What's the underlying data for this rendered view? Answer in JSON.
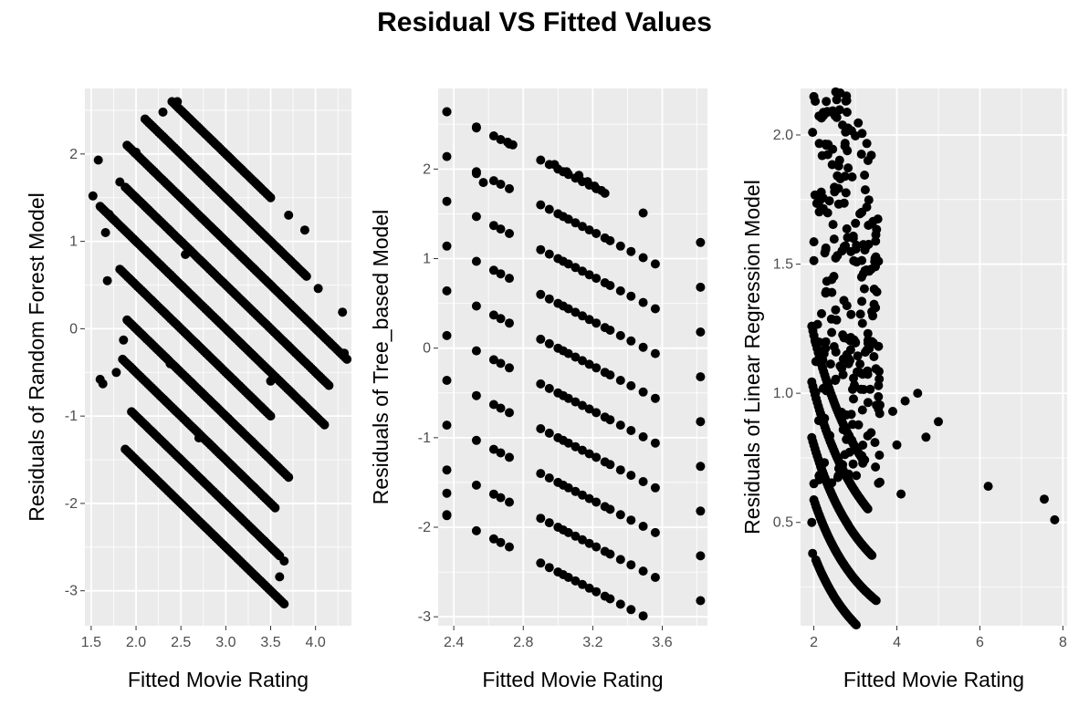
{
  "figure": {
    "title": "Residual VS Fitted Values"
  },
  "colors": {
    "panel_bg": "#ebebeb",
    "grid": "#ffffff",
    "point": "#000000",
    "tick_text": "#4d4d4d"
  },
  "chart_data": [
    {
      "type": "scatter",
      "xlabel": "Fitted Movie Rating",
      "ylabel": "Residuals of Random Forest Model",
      "xlim": [
        1.43,
        4.4
      ],
      "ylim": [
        -3.4,
        2.75
      ],
      "xticks": [
        1.5,
        2.0,
        2.5,
        3.0,
        3.5,
        4.0
      ],
      "xtick_labels": [
        "1.5",
        "2.0",
        "2.5",
        "3.0",
        "3.5",
        "4.0"
      ],
      "yticks": [
        -3,
        -2,
        -1,
        0,
        1,
        2
      ],
      "ytick_labels": [
        "-3",
        "-2",
        "-1",
        "0",
        "1",
        "2"
      ],
      "grid": true,
      "pattern": "diagonal bands: residual = rating - fitted, for true ratings 0.5-5 in 0.5 steps",
      "bands": [
        {
          "c": 0.5,
          "x": [
            1.88,
            3.65
          ]
        },
        {
          "c": 1.0,
          "x": [
            1.95,
            3.6
          ]
        },
        {
          "c": 1.5,
          "x": [
            1.85,
            3.55
          ]
        },
        {
          "c": 2.0,
          "x": [
            1.9,
            3.7
          ]
        },
        {
          "c": 2.5,
          "x": [
            1.82,
            3.5
          ]
        },
        {
          "c": 3.0,
          "x": [
            1.6,
            4.1
          ]
        },
        {
          "c": 3.5,
          "x": [
            1.88,
            4.15
          ]
        },
        {
          "c": 4.0,
          "x": [
            1.9,
            4.35
          ]
        },
        {
          "c": 4.5,
          "x": [
            2.1,
            3.9
          ]
        },
        {
          "c": 5.0,
          "x": [
            2.4,
            3.5
          ]
        }
      ],
      "points": [
        {
          "x": 1.52,
          "y": 1.52
        },
        {
          "x": 1.58,
          "y": 1.93
        },
        {
          "x": 1.6,
          "y": -0.58
        },
        {
          "x": 1.63,
          "y": -0.63
        },
        {
          "x": 1.66,
          "y": 1.1
        },
        {
          "x": 1.68,
          "y": 0.55
        },
        {
          "x": 1.7,
          "y": 1.31
        },
        {
          "x": 1.75,
          "y": 1.25
        },
        {
          "x": 1.78,
          "y": -0.5
        },
        {
          "x": 1.82,
          "y": 1.68
        },
        {
          "x": 1.86,
          "y": -0.13
        },
        {
          "x": 2.0,
          "y": 2.02
        },
        {
          "x": 2.2,
          "y": 1.8
        },
        {
          "x": 2.3,
          "y": 2.48
        },
        {
          "x": 2.46,
          "y": 2.6
        },
        {
          "x": 3.7,
          "y": 1.3
        },
        {
          "x": 3.78,
          "y": 0.72
        },
        {
          "x": 3.88,
          "y": 1.13
        },
        {
          "x": 4.03,
          "y": 0.46
        },
        {
          "x": 4.3,
          "y": 0.19
        },
        {
          "x": 4.32,
          "y": -0.28
        },
        {
          "x": 3.6,
          "y": -2.84
        },
        {
          "x": 3.65,
          "y": -2.66
        },
        {
          "x": 2.38,
          "y": -0.4
        },
        {
          "x": 2.55,
          "y": 0.85
        },
        {
          "x": 2.7,
          "y": -1.25
        },
        {
          "x": 3.5,
          "y": -0.6
        }
      ]
    },
    {
      "type": "scatter",
      "xlabel": "Fitted Movie Rating",
      "ylabel": "Residuals of Tree_based Model",
      "xlim": [
        2.31,
        3.86
      ],
      "ylim": [
        -3.1,
        2.9
      ],
      "xticks": [
        2.4,
        2.8,
        3.2,
        3.6
      ],
      "xtick_labels": [
        "2.4",
        "2.8",
        "3.2",
        "3.6"
      ],
      "yticks": [
        -3,
        -2,
        -1,
        0,
        1,
        2
      ],
      "ytick_labels": [
        "-3",
        "-2",
        "-1",
        "0",
        "1",
        "2"
      ],
      "grid": true,
      "pattern": "discrete fitted values; at each, residuals = rating - fitted for ratings 0.5-5 in 0.5 steps",
      "columns": [
        {
          "x": 2.36,
          "steps": [
            1,
            2,
            3,
            4,
            5,
            6,
            7,
            8,
            9,
            10
          ],
          "extra": [
            2.64,
            -1.87,
            -1.62
          ]
        },
        {
          "x": 2.53,
          "steps": [
            2,
            3,
            4,
            5,
            6,
            7,
            8,
            9,
            10
          ],
          "extra": [
            2.46,
            1.95,
            -2.04
          ]
        },
        {
          "x": 2.63,
          "steps": [
            1,
            2,
            3,
            4,
            5,
            6,
            7,
            8,
            9,
            10
          ]
        },
        {
          "x": 2.67,
          "steps": [
            1,
            2,
            3,
            4,
            5,
            6,
            7,
            8,
            9,
            10
          ]
        },
        {
          "x": 2.72,
          "steps": [
            1,
            2,
            3,
            4,
            5,
            6,
            7,
            8,
            9,
            10
          ]
        },
        {
          "x": 2.9,
          "steps": [
            1,
            2,
            3,
            4,
            5,
            6,
            7,
            8,
            9,
            10
          ]
        },
        {
          "x": 2.95,
          "steps": [
            1,
            2,
            3,
            4,
            5,
            6,
            7,
            8,
            9,
            10
          ]
        },
        {
          "x": 3.0,
          "steps": [
            1,
            2,
            3,
            4,
            5,
            6,
            7,
            8,
            9,
            10
          ]
        },
        {
          "x": 3.03,
          "steps": [
            1,
            2,
            3,
            4,
            5,
            6,
            7,
            8,
            9,
            10
          ]
        },
        {
          "x": 3.06,
          "steps": [
            1,
            2,
            3,
            4,
            5,
            6,
            7,
            8,
            9,
            10
          ]
        },
        {
          "x": 3.1,
          "steps": [
            1,
            2,
            3,
            4,
            5,
            6,
            7,
            8,
            9,
            10
          ]
        },
        {
          "x": 3.14,
          "steps": [
            1,
            2,
            3,
            4,
            5,
            6,
            7,
            8,
            9,
            10
          ]
        },
        {
          "x": 3.18,
          "steps": [
            1,
            2,
            3,
            4,
            5,
            6,
            7,
            8,
            9,
            10
          ]
        },
        {
          "x": 3.22,
          "steps": [
            1,
            2,
            3,
            4,
            5,
            6,
            7,
            8,
            9,
            10
          ]
        },
        {
          "x": 3.27,
          "steps": [
            1,
            2,
            3,
            4,
            5,
            6,
            7,
            8,
            9,
            10
          ]
        },
        {
          "x": 3.3,
          "steps": [
            1,
            2,
            3,
            4,
            5,
            6,
            7,
            8,
            9
          ]
        },
        {
          "x": 3.36,
          "steps": [
            1,
            2,
            3,
            4,
            5,
            6,
            7,
            8,
            9
          ]
        },
        {
          "x": 3.42,
          "steps": [
            1,
            2,
            3,
            4,
            5,
            6,
            7,
            8,
            9
          ]
        },
        {
          "x": 3.49,
          "steps": [
            1,
            2,
            3,
            4,
            5,
            6,
            7,
            8,
            9,
            10
          ]
        },
        {
          "x": 3.56,
          "steps": [
            2,
            3,
            4,
            5,
            6,
            7,
            8,
            9
          ]
        },
        {
          "x": 3.82,
          "steps": [
            1,
            2,
            3,
            4,
            5,
            6,
            7,
            8,
            9,
            10
          ]
        }
      ],
      "points": [
        {
          "x": 2.57,
          "y": 1.85
        },
        {
          "x": 2.74,
          "y": 2.27
        },
        {
          "x": 2.71,
          "y": 2.3
        },
        {
          "x": 2.98,
          "y": 2.05
        },
        {
          "x": 3.05,
          "y": 1.97
        },
        {
          "x": 3.12,
          "y": 1.93
        },
        {
          "x": 3.17,
          "y": 1.86
        },
        {
          "x": 3.21,
          "y": 1.81
        },
        {
          "x": 3.25,
          "y": 1.76
        }
      ]
    },
    {
      "type": "scatter",
      "xlabel": "Fitted Movie Rating",
      "ylabel": "Residuals of Linear Regression Model",
      "xlim": [
        1.68,
        8.1
      ],
      "ylim": [
        0.1,
        2.18
      ],
      "xticks": [
        2,
        4,
        6,
        8
      ],
      "xtick_labels": [
        "2",
        "4",
        "6",
        "8"
      ],
      "yticks": [
        0.5,
        1.0,
        1.5,
        2.0
      ],
      "ytick_labels": [
        "0.5",
        "1.0",
        "1.5",
        "2.0"
      ],
      "grid": true,
      "pattern": "absolute-residual curves: |rating - fitted| for several ratings, dense cluster 2-3.6",
      "curves": [
        {
          "c": 1.85,
          "x": [
            2.05,
            3.6
          ]
        },
        {
          "c": 2.1,
          "x": [
            2.0,
            3.5
          ]
        },
        {
          "c": 2.35,
          "x": [
            1.95,
            3.4
          ]
        },
        {
          "c": 2.6,
          "x": [
            1.95,
            3.3
          ]
        },
        {
          "c": 2.85,
          "x": [
            1.95,
            3.2
          ]
        }
      ],
      "points": [
        {
          "x": 1.97,
          "y": 2.01
        },
        {
          "x": 2.3,
          "y": 2.13
        },
        {
          "x": 2.4,
          "y": 2.09
        },
        {
          "x": 2.3,
          "y": 1.96
        },
        {
          "x": 2.2,
          "y": 1.92
        },
        {
          "x": 2.6,
          "y": 1.88
        },
        {
          "x": 2.75,
          "y": 1.84
        },
        {
          "x": 2.5,
          "y": 1.78
        },
        {
          "x": 4.2,
          "y": 0.97
        },
        {
          "x": 4.5,
          "y": 1.0
        },
        {
          "x": 4.7,
          "y": 0.83
        },
        {
          "x": 5.0,
          "y": 0.89
        },
        {
          "x": 4.1,
          "y": 0.61
        },
        {
          "x": 6.2,
          "y": 0.64
        },
        {
          "x": 7.55,
          "y": 0.59
        },
        {
          "x": 7.8,
          "y": 0.51
        },
        {
          "x": 1.95,
          "y": 0.5
        },
        {
          "x": 1.97,
          "y": 0.38
        },
        {
          "x": 3.9,
          "y": 0.93
        },
        {
          "x": 3.4,
          "y": 1.2
        },
        {
          "x": 3.15,
          "y": 1.45
        },
        {
          "x": 2.95,
          "y": 1.6
        },
        {
          "x": 4.0,
          "y": 0.8
        }
      ]
    }
  ]
}
